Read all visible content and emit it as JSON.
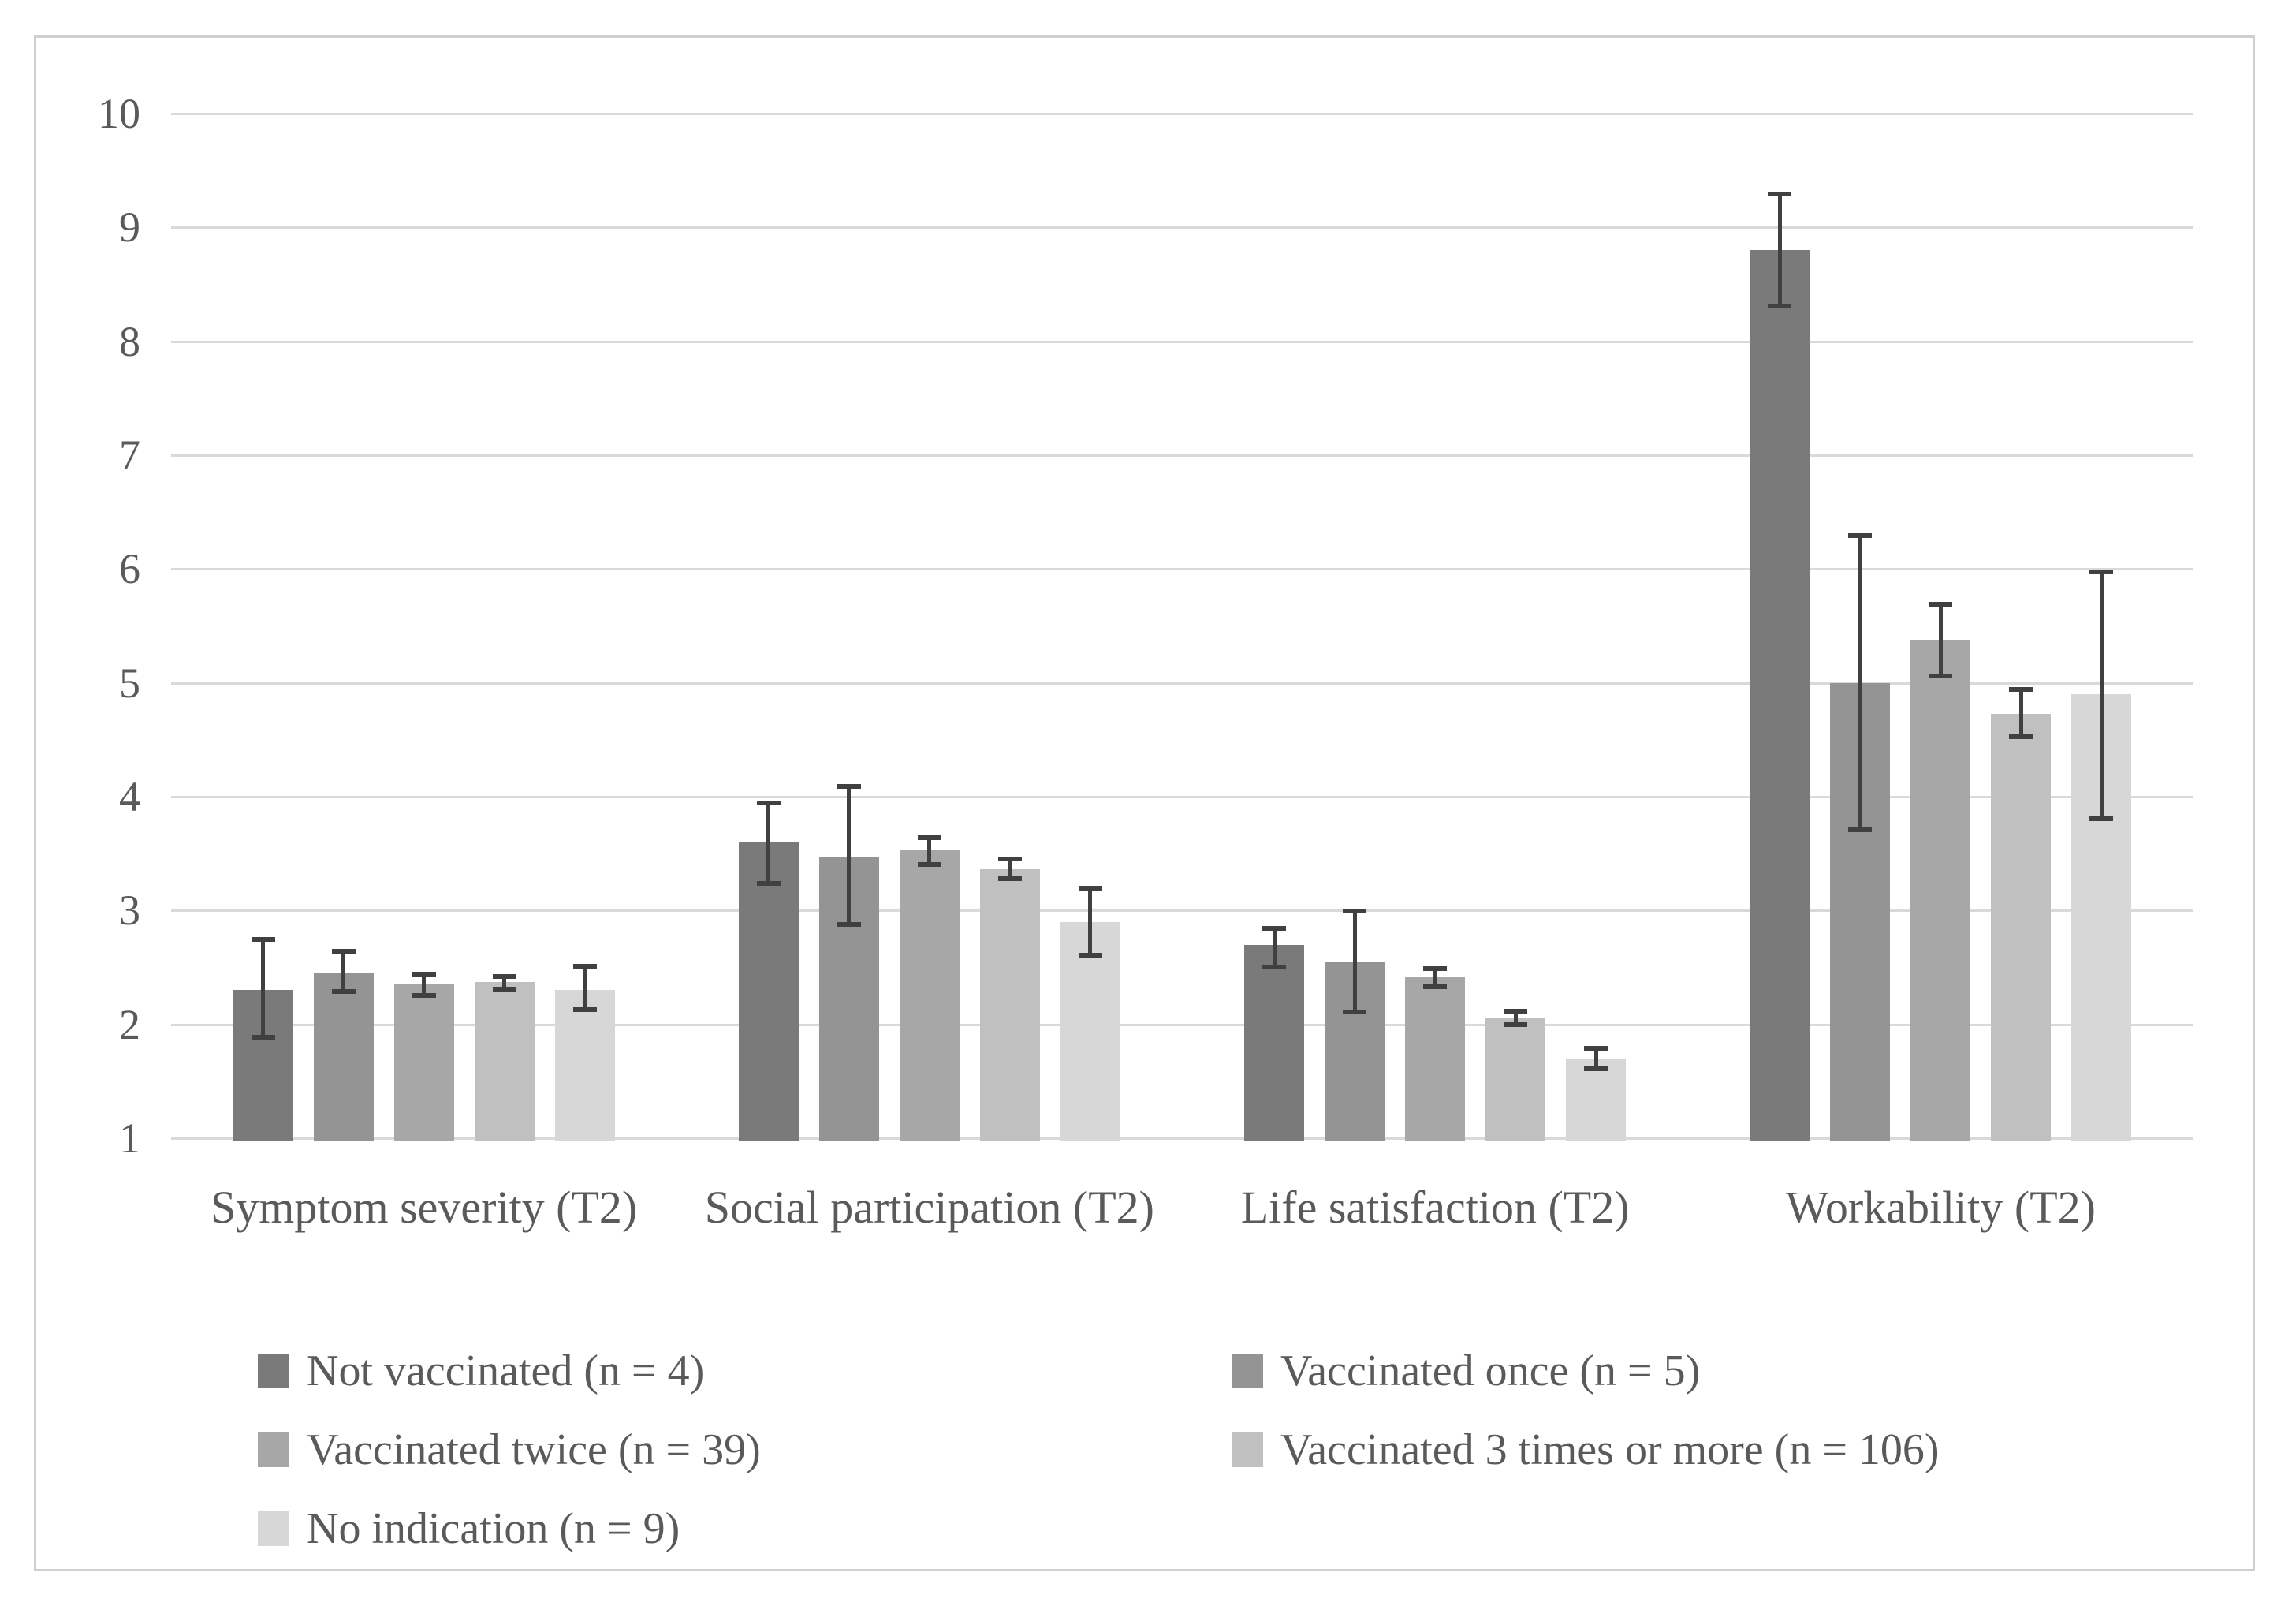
{
  "figure": {
    "background": "#ffffff",
    "border_color": "#cfcfcf"
  },
  "chart_data": {
    "type": "bar",
    "title": "",
    "categories": [
      "Symptom severity (T2)",
      "Social participation (T2)",
      "Life satisfaction (T2)",
      "Workability (T2)"
    ],
    "series": [
      {
        "name": "Not vaccinated (n = 4)",
        "color": "#7a7a7a",
        "values": [
          2.3,
          3.6,
          2.7,
          8.8
        ],
        "error_low": [
          1.88,
          3.23,
          2.5,
          8.3
        ],
        "error_high": [
          2.75,
          3.95,
          2.85,
          9.3
        ]
      },
      {
        "name": "Vaccinated once (n = 5)",
        "color": "#949494",
        "values": [
          2.45,
          3.47,
          2.55,
          5.0
        ],
        "error_low": [
          2.28,
          2.87,
          2.1,
          3.7
        ],
        "error_high": [
          2.65,
          4.1,
          3.0,
          6.3
        ]
      },
      {
        "name": "Vaccinated twice (n = 39)",
        "color": "#a7a7a7",
        "values": [
          2.35,
          3.53,
          2.42,
          5.38
        ],
        "error_low": [
          2.25,
          3.4,
          2.32,
          5.05
        ],
        "error_high": [
          2.45,
          3.65,
          2.5,
          5.7
        ]
      },
      {
        "name": "Vaccinated 3 times or more (n = 106)",
        "color": "#c0c0c0",
        "values": [
          2.37,
          3.36,
          2.06,
          4.73
        ],
        "error_low": [
          2.3,
          3.27,
          1.99,
          4.52
        ],
        "error_high": [
          2.43,
          3.46,
          2.12,
          4.95
        ]
      },
      {
        "name": "No indication (n = 9)",
        "color": "#d7d7d7",
        "values": [
          2.3,
          2.9,
          1.7,
          4.9
        ],
        "error_low": [
          2.12,
          2.6,
          1.6,
          3.8
        ],
        "error_high": [
          2.52,
          3.2,
          1.8,
          5.98
        ]
      }
    ],
    "xlabel": "",
    "ylabel": "",
    "ylim": [
      1,
      10
    ],
    "yticks": [
      1,
      2,
      3,
      4,
      5,
      6,
      7,
      8,
      9,
      10
    ],
    "grid": "horizontal",
    "gridline_color": "#d9d9d9",
    "error_bar_color": "#404040",
    "text_color": "#5a5a5a",
    "legend_position": "bottom",
    "legend_columns": 2
  }
}
